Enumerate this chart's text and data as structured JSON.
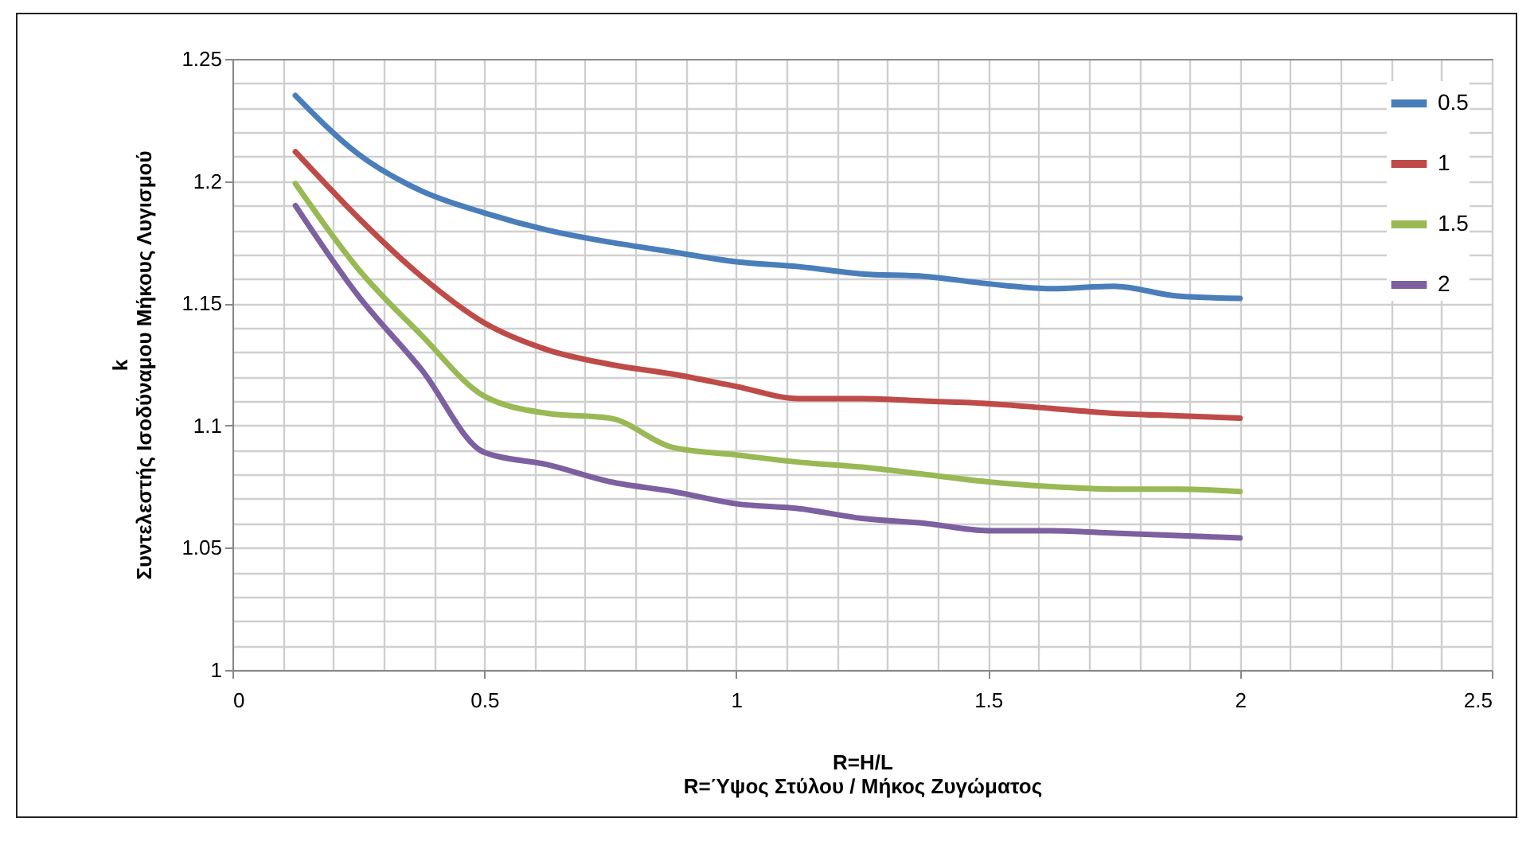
{
  "chart_data": {
    "type": "line",
    "xlabel": "R=H/L\nR=Ύψος Στύλου / Μήκος Ζυγώματος",
    "ylabel": "k\nΣυντελεστής Ισοδύναμου Μήκους Λυγισμού",
    "x": [
      0.125,
      0.25,
      0.375,
      0.5,
      0.625,
      0.75,
      0.875,
      1.0,
      1.125,
      1.25,
      1.375,
      1.5,
      1.625,
      1.75,
      1.875,
      2.0
    ],
    "series": [
      {
        "name": "0.5",
        "color": "#4a7ebb",
        "values": [
          1.235,
          1.211,
          1.196,
          1.187,
          1.18,
          1.175,
          1.171,
          1.167,
          1.165,
          1.162,
          1.161,
          1.158,
          1.156,
          1.157,
          1.153,
          1.152
        ]
      },
      {
        "name": "1",
        "color": "#be4b48",
        "values": [
          1.212,
          1.185,
          1.161,
          1.142,
          1.131,
          1.125,
          1.121,
          1.116,
          1.111,
          1.111,
          1.11,
          1.109,
          1.107,
          1.105,
          1.104,
          1.103
        ]
      },
      {
        "name": "1.5",
        "color": "#98b954",
        "values": [
          1.199,
          1.164,
          1.137,
          1.112,
          1.105,
          1.103,
          1.091,
          1.088,
          1.085,
          1.083,
          1.08,
          1.077,
          1.075,
          1.074,
          1.074,
          1.073
        ]
      },
      {
        "name": "2",
        "color": "#7d60a0",
        "values": [
          1.19,
          1.153,
          1.123,
          1.089,
          1.084,
          1.077,
          1.073,
          1.068,
          1.066,
          1.062,
          1.06,
          1.057,
          1.057,
          1.056,
          1.055,
          1.054
        ]
      }
    ],
    "xlim": [
      0,
      2.5
    ],
    "xticks": [
      0,
      0.5,
      1,
      1.5,
      2,
      2.5
    ],
    "ylim": [
      1,
      1.25
    ],
    "yticks": [
      1,
      1.05,
      1.1,
      1.15,
      1.2,
      1.25
    ],
    "grid": true,
    "legend": "top right",
    "marker": "none",
    "line_style": "solid"
  }
}
